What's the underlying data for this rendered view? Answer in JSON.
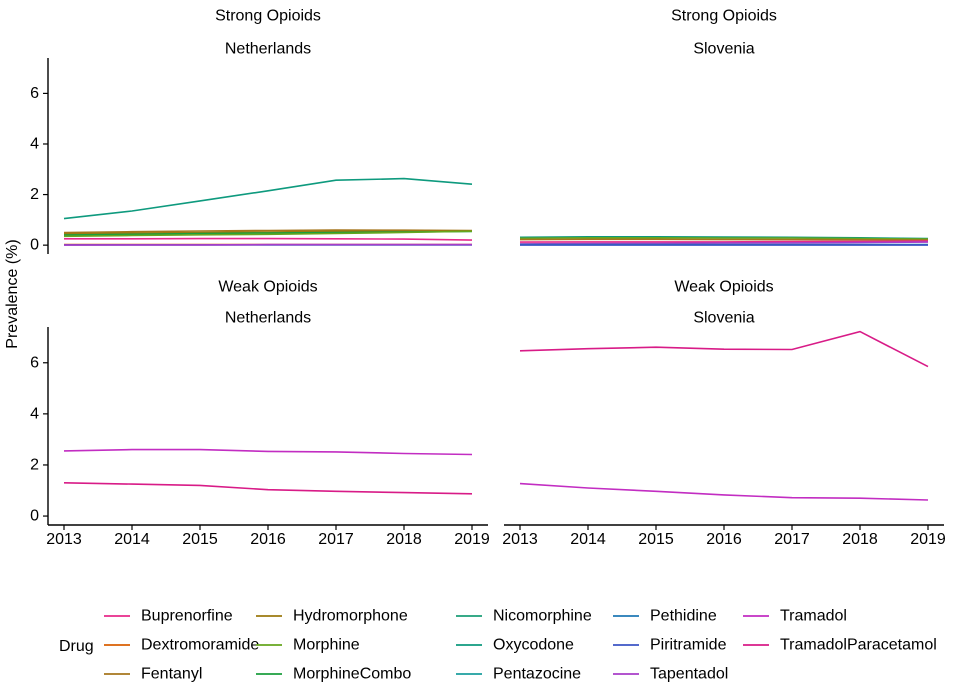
{
  "chart_data": {
    "type": "line",
    "ylabel": "Prevalence (%)",
    "xlabel": "",
    "x": [
      2013,
      2014,
      2015,
      2016,
      2017,
      2018,
      2019
    ],
    "y_ticks": [
      0,
      2,
      4,
      6
    ],
    "ylim": [
      -0.35,
      7.4
    ],
    "legend": {
      "title": "Drug",
      "position": "bottom",
      "entries": [
        {
          "name": "Buprenorfine",
          "color": "#E7298A"
        },
        {
          "name": "Dextromoramide",
          "color": "#D95F02"
        },
        {
          "name": "Fentanyl",
          "color": "#A6761D"
        },
        {
          "name": "Hydromorphone",
          "color": "#9C7A0F"
        },
        {
          "name": "Morphine",
          "color": "#66A61E"
        },
        {
          "name": "MorphineCombo",
          "color": "#1B9E3E"
        },
        {
          "name": "Nicomorphine",
          "color": "#1B9E77"
        },
        {
          "name": "Oxycodone",
          "color": "#0E9A7E"
        },
        {
          "name": "Pentazocine",
          "color": "#1B9E9E"
        },
        {
          "name": "Pethidine",
          "color": "#1F78B4"
        },
        {
          "name": "Piritramide",
          "color": "#3B54C4"
        },
        {
          "name": "Tapentadol",
          "color": "#A83DC8"
        },
        {
          "name": "Tramadol",
          "color": "#C22DC2"
        },
        {
          "name": "TramadolParacetamol",
          "color": "#D81B87"
        }
      ]
    },
    "panels": [
      {
        "group": "Strong Opioids",
        "country": "Netherlands",
        "series": [
          {
            "name": "Oxycodone",
            "values": [
              1.05,
              1.35,
              1.75,
              2.15,
              2.57,
              2.63,
              2.41
            ]
          },
          {
            "name": "Fentanyl",
            "values": [
              0.5,
              0.53,
              0.56,
              0.58,
              0.6,
              0.59,
              0.58
            ]
          },
          {
            "name": "Hydromorphone",
            "values": [
              0.45,
              0.48,
              0.5,
              0.52,
              0.55,
              0.55,
              0.56
            ]
          },
          {
            "name": "MorphineCombo",
            "values": [
              0.4,
              0.43,
              0.46,
              0.48,
              0.5,
              0.52,
              0.54
            ]
          },
          {
            "name": "Morphine",
            "values": [
              0.35,
              0.38,
              0.41,
              0.43,
              0.46,
              0.5,
              0.55
            ]
          },
          {
            "name": "Buprenorfine",
            "values": [
              0.25,
              0.25,
              0.26,
              0.26,
              0.25,
              0.24,
              0.2
            ]
          },
          {
            "name": "Dextromoramide",
            "values": [
              0.02,
              0.02,
              0.02,
              0.02,
              0.02,
              0.02,
              0.02
            ]
          },
          {
            "name": "Piritramide",
            "values": [
              0.01,
              0.01,
              0.01,
              0.01,
              0.01,
              0.01,
              0.01
            ]
          },
          {
            "name": "Tapentadol",
            "values": [
              0.0,
              0.01,
              0.01,
              0.02,
              0.02,
              0.02,
              0.02
            ]
          }
        ]
      },
      {
        "group": "Strong Opioids",
        "country": "Slovenia",
        "series": [
          {
            "name": "Oxycodone",
            "values": [
              0.31,
              0.33,
              0.33,
              0.32,
              0.31,
              0.29,
              0.26
            ]
          },
          {
            "name": "Morphine",
            "values": [
              0.27,
              0.29,
              0.29,
              0.28,
              0.28,
              0.26,
              0.24
            ]
          },
          {
            "name": "Fentanyl",
            "values": [
              0.22,
              0.23,
              0.23,
              0.22,
              0.22,
              0.21,
              0.2
            ]
          },
          {
            "name": "Buprenorfine",
            "values": [
              0.12,
              0.13,
              0.13,
              0.13,
              0.14,
              0.15,
              0.16
            ]
          },
          {
            "name": "Tapentadol",
            "values": [
              0.05,
              0.06,
              0.07,
              0.08,
              0.09,
              0.1,
              0.12
            ]
          },
          {
            "name": "Pethidine",
            "values": [
              0.02,
              0.02,
              0.02,
              0.02,
              0.02,
              0.02,
              0.02
            ]
          },
          {
            "name": "Piritramide",
            "values": [
              0.0,
              0.0,
              0.0,
              0.0,
              0.0,
              0.0,
              0.0
            ]
          }
        ]
      },
      {
        "group": "Weak Opioids",
        "country": "Netherlands",
        "series": [
          {
            "name": "Tramadol",
            "values": [
              2.55,
              2.6,
              2.6,
              2.53,
              2.51,
              2.45,
              2.41
            ]
          },
          {
            "name": "TramadolParacetamol",
            "values": [
              1.3,
              1.25,
              1.2,
              1.03,
              0.97,
              0.92,
              0.87
            ]
          }
        ]
      },
      {
        "group": "Weak Opioids",
        "country": "Slovenia",
        "series": [
          {
            "name": "TramadolParacetamol",
            "values": [
              6.47,
              6.55,
              6.61,
              6.53,
              6.52,
              7.22,
              5.85
            ]
          },
          {
            "name": "Tramadol",
            "values": [
              1.27,
              1.1,
              0.97,
              0.83,
              0.72,
              0.7,
              0.63
            ]
          }
        ]
      }
    ]
  }
}
